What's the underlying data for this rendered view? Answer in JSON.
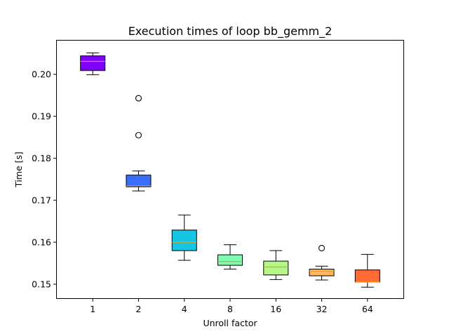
{
  "chart_data": {
    "type": "boxplot",
    "title": "Execution times of loop bb_gemm_2",
    "xlabel": "Unroll factor",
    "ylabel": "Time [s]",
    "categories": [
      "1",
      "2",
      "4",
      "8",
      "16",
      "32",
      "64"
    ],
    "ylim": [
      0.1465,
      0.2082
    ],
    "yticks": [
      0.15,
      0.16,
      0.17,
      0.18,
      0.19,
      0.2
    ],
    "ytick_labels": [
      "0.15",
      "0.16",
      "0.17",
      "0.18",
      "0.19",
      "0.20"
    ],
    "grid": false,
    "boxes": [
      {
        "category": "1",
        "whisker_low": 0.1999,
        "q1": 0.2009,
        "median": 0.2031,
        "q3": 0.2044,
        "whisker_high": 0.2051,
        "outliers": [],
        "color": "#8000ff",
        "median_color": "#ff9900"
      },
      {
        "category": "2",
        "whisker_low": 0.1722,
        "q1": 0.1732,
        "median": 0.1734,
        "q3": 0.176,
        "whisker_high": 0.177,
        "outliers": [
          0.1943,
          0.1855
        ],
        "color": "#3b6dfb",
        "median_color": "#ff9900"
      },
      {
        "category": "4",
        "whisker_low": 0.1557,
        "q1": 0.158,
        "median": 0.16,
        "q3": 0.1629,
        "whisker_high": 0.1665,
        "outliers": [],
        "color": "#14c6e4",
        "median_color": "#ff9900"
      },
      {
        "category": "8",
        "whisker_low": 0.1536,
        "q1": 0.1545,
        "median": 0.1554,
        "q3": 0.157,
        "whisker_high": 0.1594,
        "outliers": [],
        "color": "#7cfcb2",
        "median_color": "#ff9900"
      },
      {
        "category": "16",
        "whisker_low": 0.1511,
        "q1": 0.1522,
        "median": 0.1541,
        "q3": 0.1555,
        "whisker_high": 0.158,
        "outliers": [],
        "color": "#b6f688",
        "median_color": "#ff9900"
      },
      {
        "category": "32",
        "whisker_low": 0.151,
        "q1": 0.152,
        "median": 0.1531,
        "q3": 0.1536,
        "whisker_high": 0.1543,
        "outliers": [
          0.1586
        ],
        "color": "#ffb65c",
        "median_color": "#ff9900"
      },
      {
        "category": "64",
        "whisker_low": 0.1493,
        "q1": 0.1505,
        "median": 0.1505,
        "q3": 0.1534,
        "whisker_high": 0.1571,
        "outliers": [],
        "color": "#ff6a35",
        "median_color": "#ff9900"
      }
    ]
  }
}
